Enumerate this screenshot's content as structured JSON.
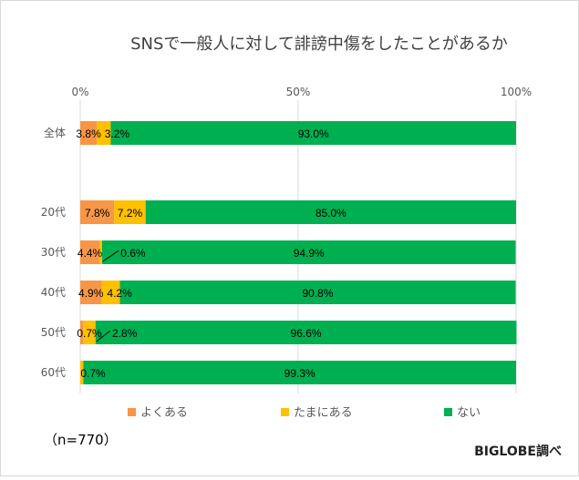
{
  "chart_data": {
    "type": "bar",
    "orientation": "horizontal",
    "stacked": "percent",
    "title": "SNSで一般人に対して誹謗中傷をしたことがあるか",
    "categories": [
      "全体",
      "",
      "20代",
      "30代",
      "40代",
      "50代",
      "60代"
    ],
    "series": [
      {
        "name": "よくある",
        "color": "#F79646",
        "values": [
          3.8,
          null,
          7.8,
          4.4,
          4.9,
          0.7,
          0
        ]
      },
      {
        "name": "たまにある",
        "color": "#FFC000",
        "values": [
          3.2,
          null,
          7.2,
          0.6,
          4.2,
          2.8,
          0.7
        ]
      },
      {
        "name": "ない",
        "color": "#00B050",
        "values": [
          93.0,
          null,
          85.0,
          94.9,
          90.8,
          96.6,
          99.3
        ]
      }
    ],
    "x_ticks": [
      "0%",
      "50%",
      "100%"
    ],
    "xlim": [
      0,
      100
    ],
    "grid": true,
    "legend": "bottom"
  },
  "note": "（n=770）",
  "credit": "BIGLOBE調べ"
}
